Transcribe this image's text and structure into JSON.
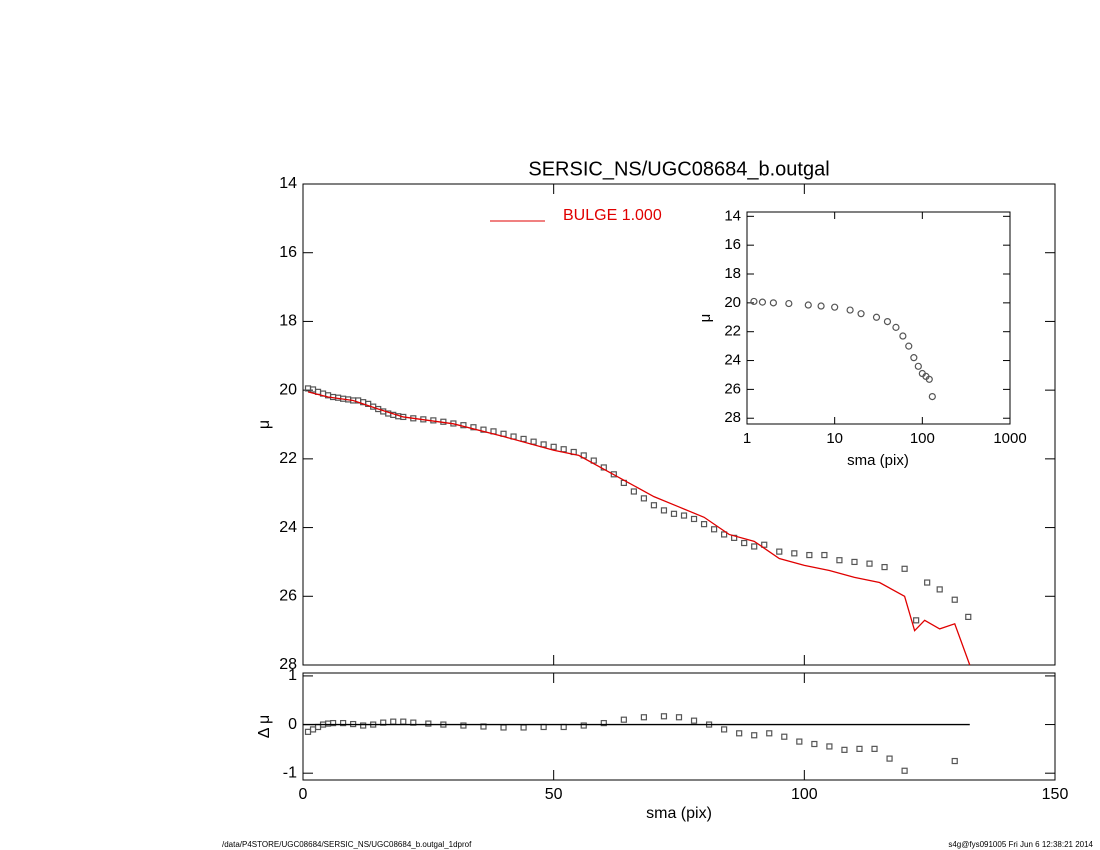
{
  "chart_data": [
    {
      "type": "scatter",
      "title": "SERSIC_NS/UGC08684_b.outgal",
      "ylabel": "μ",
      "xlim": [
        0,
        150
      ],
      "ylim": [
        28,
        14
      ],
      "yticks": [
        14,
        16,
        18,
        20,
        22,
        24,
        26,
        28
      ],
      "series": [
        {
          "color": "#555555",
          "marker": "square",
          "x": [
            1,
            2,
            3,
            4,
            5,
            6,
            7,
            8,
            9,
            10,
            11,
            12,
            13,
            14,
            15,
            16,
            17,
            18,
            19,
            20,
            22,
            24,
            26,
            28,
            30,
            32,
            34,
            36,
            38,
            40,
            42,
            44,
            46,
            48,
            50,
            52,
            54,
            56,
            58,
            60,
            62,
            64,
            66,
            68,
            70,
            72,
            74,
            76,
            78,
            80,
            82,
            84,
            86,
            88,
            90,
            92,
            95,
            98,
            101,
            104,
            107,
            110,
            113,
            116,
            120,
            122.3,
            124.5,
            127,
            130,
            132.7
          ],
          "values": [
            19.95,
            19.98,
            20.05,
            20.1,
            20.15,
            20.2,
            20.22,
            20.25,
            20.27,
            20.3,
            20.3,
            20.35,
            20.4,
            20.48,
            20.55,
            20.62,
            20.68,
            20.72,
            20.76,
            20.78,
            20.82,
            20.85,
            20.88,
            20.92,
            20.97,
            21.02,
            21.08,
            21.15,
            21.2,
            21.27,
            21.35,
            21.42,
            21.5,
            21.58,
            21.65,
            21.72,
            21.8,
            21.9,
            22.05,
            22.25,
            22.45,
            22.7,
            22.95,
            23.15,
            23.35,
            23.5,
            23.6,
            23.65,
            23.75,
            23.9,
            24.05,
            24.2,
            24.3,
            24.45,
            24.55,
            24.5,
            24.7,
            24.75,
            24.8,
            24.8,
            24.95,
            25.0,
            25.05,
            25.15,
            25.2,
            26.7,
            25.6,
            25.8,
            26.1,
            26.6
          ]
        },
        {
          "name": "BULGE  1.000",
          "color": "#e00000",
          "style": "line",
          "x": [
            1,
            5,
            10,
            15,
            20,
            30,
            40,
            50,
            55,
            60,
            65,
            70,
            75,
            80,
            85,
            90,
            95,
            100,
            105,
            110,
            115,
            120,
            122,
            124,
            127,
            130,
            133
          ],
          "values": [
            20.05,
            20.2,
            20.3,
            20.55,
            20.78,
            20.98,
            21.35,
            21.75,
            21.9,
            22.3,
            22.7,
            23.1,
            23.4,
            23.7,
            24.2,
            24.4,
            24.9,
            25.1,
            25.25,
            25.45,
            25.6,
            26.0,
            27.0,
            26.7,
            26.95,
            26.8,
            28.0
          ]
        }
      ]
    },
    {
      "type": "scatter",
      "xlabel": "sma (pix)",
      "ylabel": "Δ μ",
      "xlim": [
        0,
        150
      ],
      "ylim": [
        -1.14,
        1.06
      ],
      "xticks": [
        0,
        50,
        100,
        150
      ],
      "yticks": [
        -1,
        0,
        1
      ],
      "series": [
        {
          "color": "#555555",
          "marker": "square",
          "x": [
            1,
            2,
            3,
            4,
            5,
            6,
            8,
            10,
            12,
            14,
            16,
            18,
            20,
            22,
            25,
            28,
            32,
            36,
            40,
            44,
            48,
            52,
            56,
            60,
            64,
            68,
            72,
            75,
            78,
            81,
            84,
            87,
            90,
            93,
            96,
            99,
            102,
            105,
            108,
            111,
            114,
            117,
            120,
            130
          ],
          "values": [
            -0.15,
            -0.1,
            -0.05,
            0,
            0.02,
            0.03,
            0.03,
            0.01,
            -0.02,
            0,
            0.04,
            0.06,
            0.06,
            0.04,
            0.02,
            0,
            -0.02,
            -0.04,
            -0.06,
            -0.06,
            -0.05,
            -0.05,
            -0.02,
            0.03,
            0.1,
            0.15,
            0.17,
            0.15,
            0.08,
            0,
            -0.1,
            -0.18,
            -0.22,
            -0.18,
            -0.25,
            -0.35,
            -0.4,
            -0.45,
            -0.52,
            -0.5,
            -0.5,
            -0.7,
            -0.95,
            -0.75
          ]
        },
        {
          "color": "#000000",
          "style": "line",
          "x": [
            0,
            133
          ],
          "values": [
            0,
            0
          ]
        }
      ]
    },
    {
      "type": "scatter",
      "log_x": true,
      "xlabel": "sma (pix)",
      "ylabel": "μ",
      "xlim": [
        1,
        1000
      ],
      "ylim": [
        28.4,
        13.7
      ],
      "xticks": [
        1,
        10,
        100,
        1000
      ],
      "yticks": [
        14,
        16,
        18,
        20,
        22,
        24,
        26,
        28
      ],
      "series": [
        {
          "color": "#555555",
          "marker": "circle",
          "x": [
            1.2,
            1.5,
            2,
            3,
            5,
            7,
            10,
            15,
            20,
            30,
            40,
            50,
            60,
            70,
            80,
            90,
            100,
            110,
            120,
            130
          ],
          "values": [
            19.9,
            19.95,
            20,
            20.05,
            20.15,
            20.22,
            20.3,
            20.5,
            20.75,
            21,
            21.3,
            21.7,
            22.3,
            23,
            23.8,
            24.4,
            24.9,
            25.1,
            25.3,
            26.5
          ]
        }
      ]
    }
  ],
  "footer": {
    "left": "/data/P4STORE/UGC08684/SERSIC_NS/UGC08684_b.outgal_1dprof",
    "right": "s4g@fys091005  Fri Jun  6 12:38:21 2014"
  }
}
